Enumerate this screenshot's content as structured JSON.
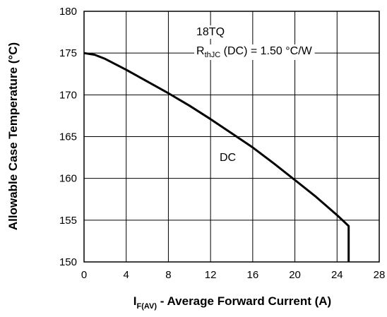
{
  "chart_data": {
    "type": "line",
    "title": "",
    "xlabel": {
      "main": "I",
      "subscript": "F(AV)",
      "rest": " - Average Forward Current (A)"
    },
    "ylabel": "Allowable Case Temperature (°C)",
    "xlim": [
      0,
      28
    ],
    "ylim": [
      150,
      180
    ],
    "x_ticks": [
      "0",
      "4",
      "8",
      "12",
      "16",
      "20",
      "24",
      "28"
    ],
    "y_ticks": [
      "150",
      "155",
      "160",
      "165",
      "170",
      "175",
      "180"
    ],
    "grid": true,
    "annotations": {
      "part_number": "18TQ",
      "thermal_prefix": "R",
      "thermal_subscript": "thJC",
      "thermal_rest": " (DC) = 1.50 °C/W",
      "curve_label": "DC"
    },
    "series": [
      {
        "name": "DC",
        "x": [
          0,
          1,
          2,
          4,
          6,
          8,
          10,
          12,
          14,
          16,
          18,
          20,
          22,
          24,
          25.1,
          25.1
        ],
        "y": [
          175,
          174.8,
          174.3,
          173.0,
          171.6,
          170.2,
          168.7,
          167.1,
          165.4,
          163.7,
          161.8,
          159.8,
          157.8,
          155.6,
          154.3,
          150
        ]
      }
    ]
  }
}
